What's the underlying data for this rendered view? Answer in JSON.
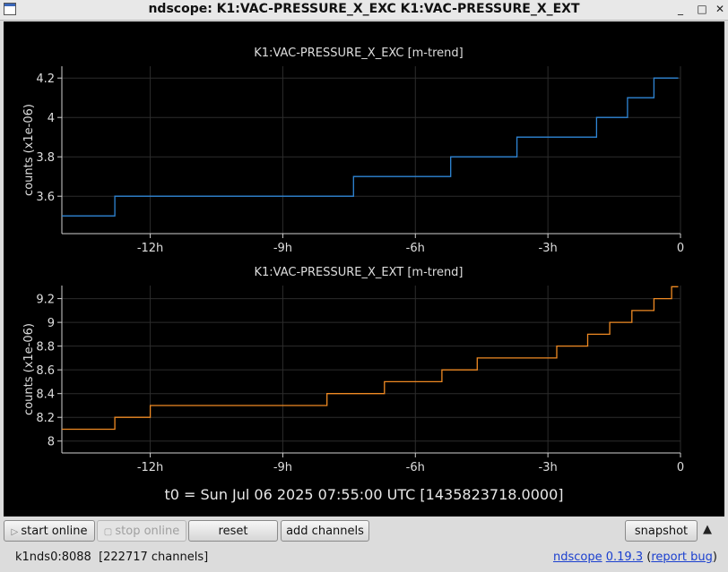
{
  "window": {
    "title": "ndscope: K1:VAC-PRESSURE_X_EXC K1:VAC-PRESSURE_X_EXT",
    "controls": [
      "_",
      "□",
      "✕"
    ]
  },
  "plots": [
    {
      "title": "K1:VAC-PRESSURE_X_EXC [m-trend]",
      "ylabel": "counts (x1e-06)",
      "color": "#2f86d6",
      "yticks": [
        "3.6",
        "3.8",
        "4",
        "4.2"
      ],
      "xticks": [
        "-12h",
        "-9h",
        "-6h",
        "-3h",
        "0"
      ]
    },
    {
      "title": "K1:VAC-PRESSURE_X_EXT [m-trend]",
      "ylabel": "counts (x1e-06)",
      "color": "#ef8a23",
      "yticks": [
        "8",
        "8.2",
        "8.4",
        "8.6",
        "8.8",
        "9",
        "9.2"
      ],
      "xticks": [
        "-12h",
        "-9h",
        "-6h",
        "-3h",
        "0"
      ]
    }
  ],
  "chart_data": [
    {
      "type": "line",
      "title": "K1:VAC-PRESSURE_X_EXC [m-trend]",
      "ylabel": "counts (x1e-06)",
      "xlim": [
        -14,
        0
      ],
      "ylim": [
        3.41,
        4.26
      ],
      "grid": true,
      "series": [
        {
          "x": [
            -14,
            -12.8,
            -12.8,
            -7.4,
            -7.4,
            -6.3,
            -6.3,
            -5.2,
            -5.2,
            -3.7,
            -3.7,
            -2.8,
            -2.8,
            -1.9,
            -1.9,
            -1.6,
            -1.6,
            -1.2,
            -1.2,
            -0.6,
            -0.6,
            -0.05
          ],
          "y": [
            3.5,
            3.5,
            3.6,
            3.6,
            3.7,
            3.7,
            3.7,
            3.7,
            3.8,
            3.8,
            3.9,
            3.9,
            3.9,
            3.9,
            4.0,
            4.0,
            4.0,
            4.0,
            4.1,
            4.1,
            4.2,
            4.2
          ]
        }
      ]
    },
    {
      "type": "line",
      "title": "K1:VAC-PRESSURE_X_EXT [m-trend]",
      "ylabel": "counts (x1e-06)",
      "xlim": [
        -14,
        0
      ],
      "ylim": [
        7.9,
        9.31
      ],
      "grid": true,
      "series": [
        {
          "x": [
            -14,
            -12.8,
            -12.8,
            -12.0,
            -12.0,
            -8.0,
            -8.0,
            -6.7,
            -6.7,
            -5.4,
            -5.4,
            -4.6,
            -4.6,
            -2.8,
            -2.8,
            -2.1,
            -2.1,
            -1.6,
            -1.6,
            -1.1,
            -1.1,
            -0.6,
            -0.6,
            -0.2,
            -0.2,
            -0.05
          ],
          "y": [
            8.1,
            8.1,
            8.2,
            8.2,
            8.3,
            8.3,
            8.4,
            8.4,
            8.5,
            8.5,
            8.6,
            8.6,
            8.7,
            8.7,
            8.8,
            8.8,
            8.9,
            8.9,
            9.0,
            9.0,
            9.1,
            9.1,
            9.2,
            9.2,
            9.3,
            9.3
          ]
        }
      ]
    }
  ],
  "t0_label": "t0 = Sun Jul 06 2025 07:55:00 UTC [1435823718.0000]",
  "controls": {
    "start_online": "start online",
    "stop_online": "stop online",
    "reset": "reset",
    "add_channels": "add channels",
    "snapshot": "snapshot",
    "expand": "▲"
  },
  "status": {
    "server": "k1nds0:8088  [222717 channels]",
    "app_name": "ndscope",
    "version": "0.19.3",
    "paren_open": "(",
    "report_bug": "report bug",
    "paren_close": ")"
  }
}
